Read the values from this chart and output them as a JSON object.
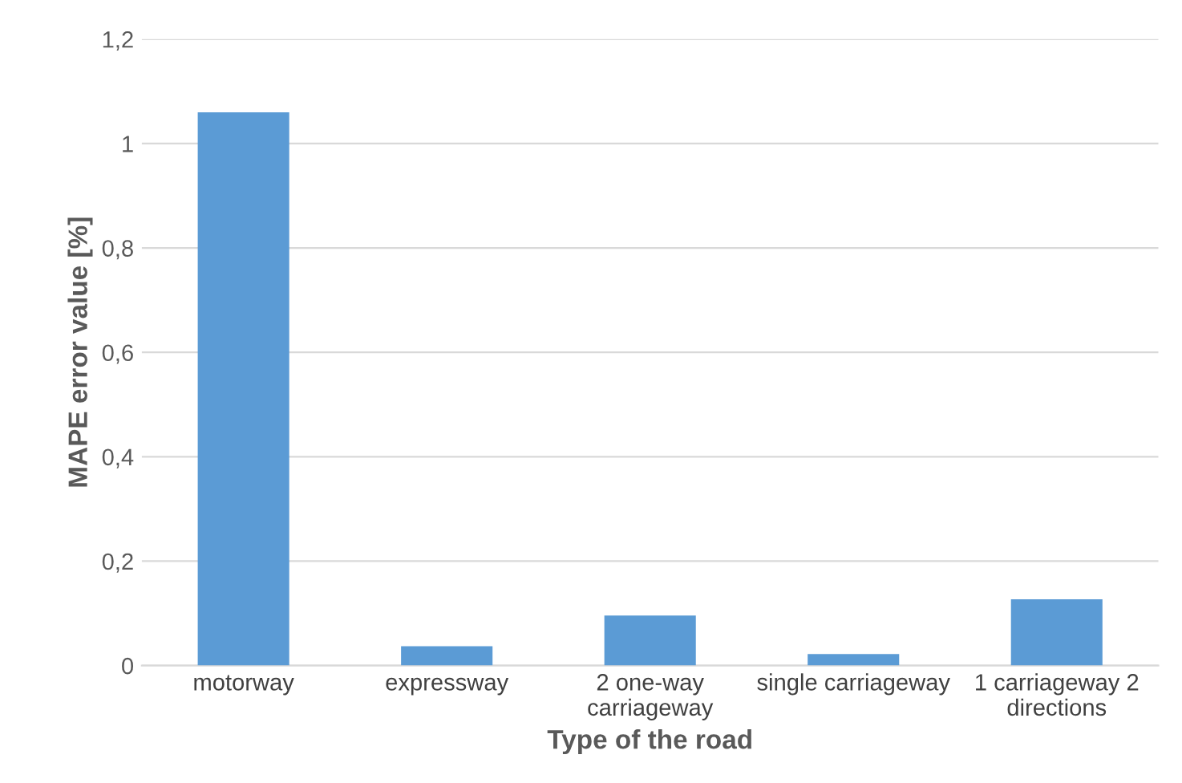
{
  "chart_data": {
    "type": "bar",
    "xlabel": "Type of the road",
    "ylabel": "MAPE error value [%]",
    "categories": [
      "motorway",
      "expressway",
      "2 one-way\ncarriageway",
      "single carriageway",
      "1 carriageway 2\ndirections"
    ],
    "values": [
      1.06,
      0.037,
      0.096,
      0.022,
      0.127
    ],
    "color": "#5b9bd5",
    "ylim": [
      0,
      1.2
    ],
    "yticks": [
      0,
      {
        "value": 0.2,
        "label": "0,2"
      },
      {
        "value": 0.4,
        "label": "0,4"
      },
      {
        "value": 0.6,
        "label": "0,6"
      },
      {
        "value": 0.8,
        "label": "0,8"
      },
      1,
      {
        "value": 1.2,
        "label": "1,2"
      }
    ],
    "grid": "y"
  }
}
